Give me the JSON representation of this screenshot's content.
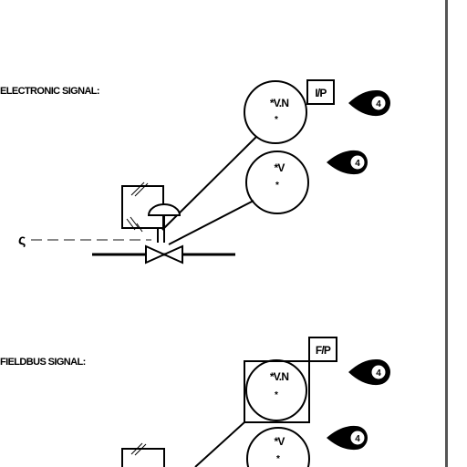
{
  "section_electronic": {
    "heading": "ELECTRONIC SIGNAL:",
    "instrument_top": {
      "tag": "*V.N",
      "sub": "*"
    },
    "instrument_bottom": {
      "tag": "*V",
      "sub": "*"
    },
    "converter_label": "I/P",
    "callout_top": "4",
    "callout_bottom": "4",
    "signal_symbol": "ς"
  },
  "section_fieldbus": {
    "heading": "FIELDBUS SIGNAL:",
    "instrument_top": {
      "tag": "*V.N",
      "sub": "*"
    },
    "instrument_bottom": {
      "tag": "*V",
      "sub": "*"
    },
    "converter_label": "F/P",
    "callout_top": "4",
    "callout_bottom": "4"
  }
}
